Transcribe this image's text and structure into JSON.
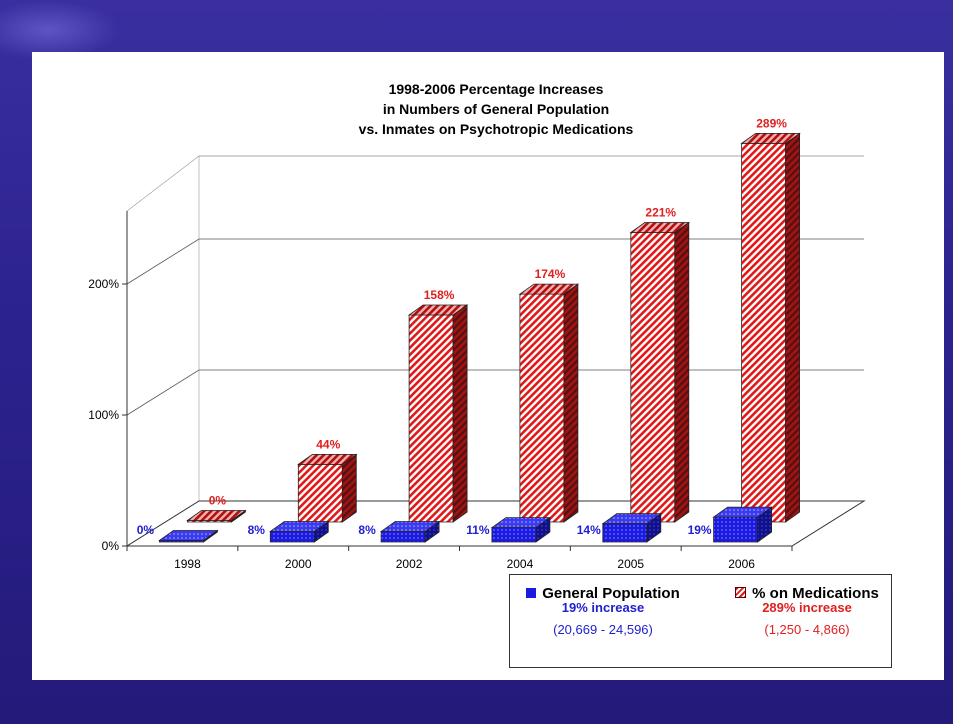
{
  "chart_data": {
    "type": "bar",
    "title": [
      "1998-2006 Percentage Increases",
      "in Numbers of General Population",
      "vs. Inmates on Psychotropic Medications"
    ],
    "categories": [
      "1998",
      "2000",
      "2002",
      "2004",
      "2005",
      "2006"
    ],
    "y_ticks": [
      "0%",
      "100%",
      "200%"
    ],
    "ylim": [
      0,
      250
    ],
    "series": [
      {
        "name": "General Population",
        "values": [
          0,
          8,
          8,
          11,
          14,
          19
        ],
        "labels": [
          "0%",
          "8%",
          "8%",
          "11%",
          "14%",
          "19%"
        ],
        "color": "#1a1ae0",
        "label_color": "#2020d0"
      },
      {
        "name": "% on Medications",
        "values": [
          0,
          44,
          158,
          174,
          221,
          289
        ],
        "labels": [
          "0%",
          "44%",
          "158%",
          "174%",
          "221%",
          "289%"
        ],
        "color": "#e01818",
        "label_color": "#e02020"
      }
    ]
  },
  "legend": {
    "general": {
      "label": "General Population",
      "increase": "19% increase",
      "range": "(20,669 - 24,596)"
    },
    "meds": {
      "label": "% on Medications",
      "increase": "289% increase",
      "range": "(1,250 - 4,866)"
    }
  },
  "colors": {
    "background": "#2a1f82",
    "blue": "#1a1ae0",
    "red": "#e01818"
  }
}
